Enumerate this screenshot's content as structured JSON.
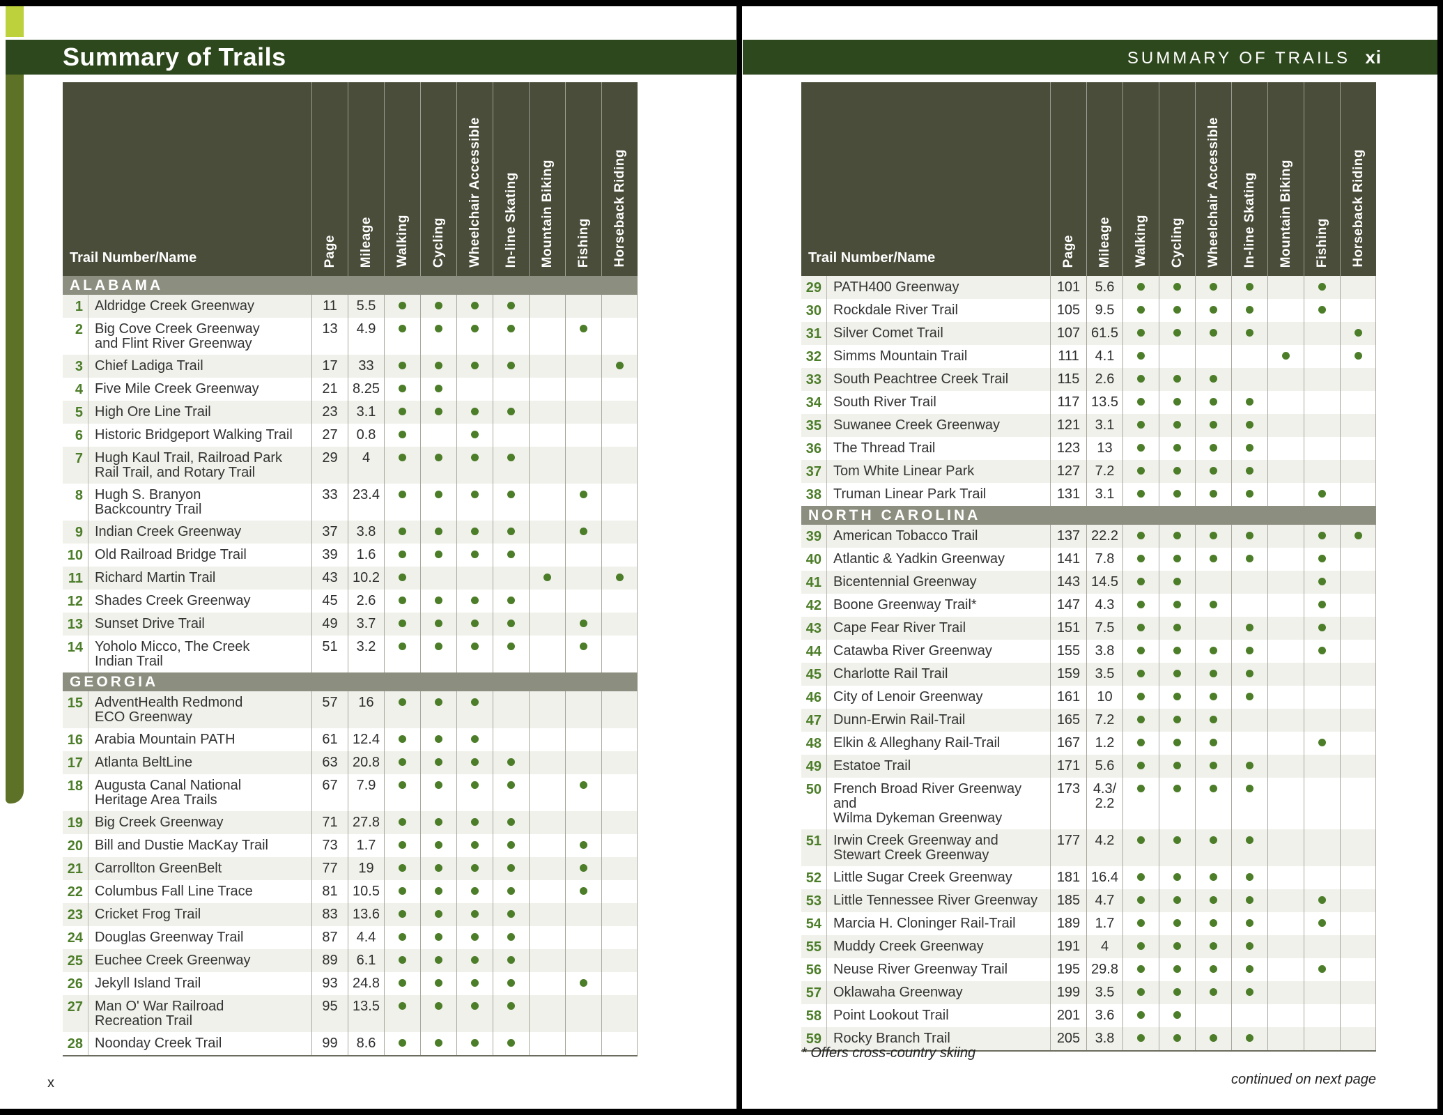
{
  "table": {
    "name_header": "Trail Number/Name",
    "columns": [
      "Page",
      "Mileage",
      "Walking",
      "Cycling",
      "Wheelchair Accessible",
      "In-line Skating",
      "Mountain Biking",
      "Fishing",
      "Horseback Riding"
    ]
  },
  "page_left": {
    "title": "Summary of Trails",
    "page_number": "x",
    "sections": [
      {
        "name": "ALABAMA",
        "rows": [
          {
            "num": "1",
            "name": "Aldridge Creek Greenway",
            "page": "11",
            "miles": "5.5",
            "dots": [
              1,
              1,
              1,
              1,
              0,
              0,
              0
            ]
          },
          {
            "num": "2",
            "name": "Big Cove Creek Greenway\nand Flint River Greenway",
            "page": "13",
            "miles": "4.9",
            "dots": [
              1,
              1,
              1,
              1,
              0,
              1,
              0
            ]
          },
          {
            "num": "3",
            "name": "Chief Ladiga Trail",
            "page": "17",
            "miles": "33",
            "dots": [
              1,
              1,
              1,
              1,
              0,
              0,
              1
            ]
          },
          {
            "num": "4",
            "name": "Five Mile Creek Greenway",
            "page": "21",
            "miles": "8.25",
            "dots": [
              1,
              1,
              0,
              0,
              0,
              0,
              0
            ]
          },
          {
            "num": "5",
            "name": "High Ore Line Trail",
            "page": "23",
            "miles": "3.1",
            "dots": [
              1,
              1,
              1,
              1,
              0,
              0,
              0
            ]
          },
          {
            "num": "6",
            "name": "Historic Bridgeport Walking Trail",
            "page": "27",
            "miles": "0.8",
            "dots": [
              1,
              0,
              1,
              0,
              0,
              0,
              0
            ]
          },
          {
            "num": "7",
            "name": "Hugh Kaul Trail, Railroad Park\nRail Trail, and Rotary Trail",
            "page": "29",
            "miles": "4",
            "dots": [
              1,
              1,
              1,
              1,
              0,
              0,
              0
            ]
          },
          {
            "num": "8",
            "name": "Hugh S. Branyon\nBackcountry Trail",
            "page": "33",
            "miles": "23.4",
            "dots": [
              1,
              1,
              1,
              1,
              0,
              1,
              0
            ]
          },
          {
            "num": "9",
            "name": "Indian Creek Greenway",
            "page": "37",
            "miles": "3.8",
            "dots": [
              1,
              1,
              1,
              1,
              0,
              1,
              0
            ]
          },
          {
            "num": "10",
            "name": "Old Railroad Bridge Trail",
            "page": "39",
            "miles": "1.6",
            "dots": [
              1,
              1,
              1,
              1,
              0,
              0,
              0
            ]
          },
          {
            "num": "11",
            "name": "Richard Martin Trail",
            "page": "43",
            "miles": "10.2",
            "dots": [
              1,
              0,
              0,
              0,
              1,
              0,
              1
            ]
          },
          {
            "num": "12",
            "name": "Shades Creek Greenway",
            "page": "45",
            "miles": "2.6",
            "dots": [
              1,
              1,
              1,
              1,
              0,
              0,
              0
            ]
          },
          {
            "num": "13",
            "name": "Sunset Drive Trail",
            "page": "49",
            "miles": "3.7",
            "dots": [
              1,
              1,
              1,
              1,
              0,
              1,
              0
            ]
          },
          {
            "num": "14",
            "name": "Yoholo Micco, The Creek\nIndian Trail",
            "page": "51",
            "miles": "3.2",
            "dots": [
              1,
              1,
              1,
              1,
              0,
              1,
              0
            ]
          }
        ]
      },
      {
        "name": "GEORGIA",
        "rows": [
          {
            "num": "15",
            "name": "AdventHealth Redmond\nECO Greenway",
            "page": "57",
            "miles": "16",
            "dots": [
              1,
              1,
              1,
              0,
              0,
              0,
              0
            ]
          },
          {
            "num": "16",
            "name": "Arabia Mountain PATH",
            "page": "61",
            "miles": "12.4",
            "dots": [
              1,
              1,
              1,
              0,
              0,
              0,
              0
            ]
          },
          {
            "num": "17",
            "name": "Atlanta BeltLine",
            "page": "63",
            "miles": "20.8",
            "dots": [
              1,
              1,
              1,
              1,
              0,
              0,
              0
            ]
          },
          {
            "num": "18",
            "name": "Augusta Canal National\nHeritage Area Trails",
            "page": "67",
            "miles": "7.9",
            "dots": [
              1,
              1,
              1,
              1,
              0,
              1,
              0
            ]
          },
          {
            "num": "19",
            "name": "Big Creek Greenway",
            "page": "71",
            "miles": "27.8",
            "dots": [
              1,
              1,
              1,
              1,
              0,
              0,
              0
            ]
          },
          {
            "num": "20",
            "name": "Bill and Dustie MacKay Trail",
            "page": "73",
            "miles": "1.7",
            "dots": [
              1,
              1,
              1,
              1,
              0,
              1,
              0
            ]
          },
          {
            "num": "21",
            "name": "Carrollton GreenBelt",
            "page": "77",
            "miles": "19",
            "dots": [
              1,
              1,
              1,
              1,
              0,
              1,
              0
            ]
          },
          {
            "num": "22",
            "name": "Columbus Fall Line Trace",
            "page": "81",
            "miles": "10.5",
            "dots": [
              1,
              1,
              1,
              1,
              0,
              1,
              0
            ]
          },
          {
            "num": "23",
            "name": "Cricket Frog Trail",
            "page": "83",
            "miles": "13.6",
            "dots": [
              1,
              1,
              1,
              1,
              0,
              0,
              0
            ]
          },
          {
            "num": "24",
            "name": "Douglas Greenway Trail",
            "page": "87",
            "miles": "4.4",
            "dots": [
              1,
              1,
              1,
              1,
              0,
              0,
              0
            ]
          },
          {
            "num": "25",
            "name": "Euchee Creek Greenway",
            "page": "89",
            "miles": "6.1",
            "dots": [
              1,
              1,
              1,
              1,
              0,
              0,
              0
            ]
          },
          {
            "num": "26",
            "name": "Jekyll Island Trail",
            "page": "93",
            "miles": "24.8",
            "dots": [
              1,
              1,
              1,
              1,
              0,
              1,
              0
            ]
          },
          {
            "num": "27",
            "name": "Man O' War Railroad\nRecreation Trail",
            "page": "95",
            "miles": "13.5",
            "dots": [
              1,
              1,
              1,
              1,
              0,
              0,
              0
            ]
          },
          {
            "num": "28",
            "name": "Noonday Creek Trail",
            "page": "99",
            "miles": "8.6",
            "dots": [
              1,
              1,
              1,
              1,
              0,
              0,
              0
            ]
          }
        ]
      }
    ]
  },
  "page_right": {
    "running_header": "SUMMARY OF TRAILS",
    "page_number": "xi",
    "sections": [
      {
        "name": null,
        "rows": [
          {
            "num": "29",
            "name": "PATH400 Greenway",
            "page": "101",
            "miles": "5.6",
            "dots": [
              1,
              1,
              1,
              1,
              0,
              1,
              0
            ]
          },
          {
            "num": "30",
            "name": "Rockdale River Trail",
            "page": "105",
            "miles": "9.5",
            "dots": [
              1,
              1,
              1,
              1,
              0,
              1,
              0
            ]
          },
          {
            "num": "31",
            "name": "Silver Comet Trail",
            "page": "107",
            "miles": "61.5",
            "dots": [
              1,
              1,
              1,
              1,
              0,
              0,
              1
            ]
          },
          {
            "num": "32",
            "name": "Simms Mountain Trail",
            "page": "111",
            "miles": "4.1",
            "dots": [
              1,
              0,
              0,
              0,
              1,
              0,
              1
            ]
          },
          {
            "num": "33",
            "name": "South Peachtree Creek Trail",
            "page": "115",
            "miles": "2.6",
            "dots": [
              1,
              1,
              1,
              0,
              0,
              0,
              0
            ]
          },
          {
            "num": "34",
            "name": "South River Trail",
            "page": "117",
            "miles": "13.5",
            "dots": [
              1,
              1,
              1,
              1,
              0,
              0,
              0
            ]
          },
          {
            "num": "35",
            "name": "Suwanee Creek Greenway",
            "page": "121",
            "miles": "3.1",
            "dots": [
              1,
              1,
              1,
              1,
              0,
              0,
              0
            ]
          },
          {
            "num": "36",
            "name": "The Thread Trail",
            "page": "123",
            "miles": "13",
            "dots": [
              1,
              1,
              1,
              1,
              0,
              0,
              0
            ]
          },
          {
            "num": "37",
            "name": "Tom White Linear Park",
            "page": "127",
            "miles": "7.2",
            "dots": [
              1,
              1,
              1,
              1,
              0,
              0,
              0
            ]
          },
          {
            "num": "38",
            "name": "Truman Linear Park Trail",
            "page": "131",
            "miles": "3.1",
            "dots": [
              1,
              1,
              1,
              1,
              0,
              1,
              0
            ]
          }
        ]
      },
      {
        "name": "NORTH CAROLINA",
        "rows": [
          {
            "num": "39",
            "name": "American Tobacco Trail",
            "page": "137",
            "miles": "22.2",
            "dots": [
              1,
              1,
              1,
              1,
              0,
              1,
              1
            ]
          },
          {
            "num": "40",
            "name": "Atlantic & Yadkin Greenway",
            "page": "141",
            "miles": "7.8",
            "dots": [
              1,
              1,
              1,
              1,
              0,
              1,
              0
            ]
          },
          {
            "num": "41",
            "name": "Bicentennial Greenway",
            "page": "143",
            "miles": "14.5",
            "dots": [
              1,
              1,
              0,
              0,
              0,
              1,
              0
            ]
          },
          {
            "num": "42",
            "name": "Boone Greenway Trail*",
            "page": "147",
            "miles": "4.3",
            "dots": [
              1,
              1,
              1,
              0,
              0,
              1,
              0
            ]
          },
          {
            "num": "43",
            "name": "Cape Fear River Trail",
            "page": "151",
            "miles": "7.5",
            "dots": [
              1,
              1,
              0,
              1,
              0,
              1,
              0
            ]
          },
          {
            "num": "44",
            "name": "Catawba River Greenway",
            "page": "155",
            "miles": "3.8",
            "dots": [
              1,
              1,
              1,
              1,
              0,
              1,
              0
            ]
          },
          {
            "num": "45",
            "name": "Charlotte Rail Trail",
            "page": "159",
            "miles": "3.5",
            "dots": [
              1,
              1,
              1,
              1,
              0,
              0,
              0
            ]
          },
          {
            "num": "46",
            "name": "City of Lenoir Greenway",
            "page": "161",
            "miles": "10",
            "dots": [
              1,
              1,
              1,
              1,
              0,
              0,
              0
            ]
          },
          {
            "num": "47",
            "name": "Dunn-Erwin Rail-Trail",
            "page": "165",
            "miles": "7.2",
            "dots": [
              1,
              1,
              1,
              0,
              0,
              0,
              0
            ]
          },
          {
            "num": "48",
            "name": "Elkin & Alleghany Rail-Trail",
            "page": "167",
            "miles": "1.2",
            "dots": [
              1,
              1,
              1,
              0,
              0,
              1,
              0
            ]
          },
          {
            "num": "49",
            "name": "Estatoe Trail",
            "page": "171",
            "miles": "5.6",
            "dots": [
              1,
              1,
              1,
              1,
              0,
              0,
              0
            ]
          },
          {
            "num": "50",
            "name": "French Broad River Greenway and\nWilma Dykeman Greenway",
            "page": "173",
            "miles": "4.3/\n2.2",
            "dots": [
              1,
              1,
              1,
              1,
              0,
              0,
              0
            ]
          },
          {
            "num": "51",
            "name": "Irwin Creek Greenway and\nStewart Creek Greenway",
            "page": "177",
            "miles": "4.2",
            "dots": [
              1,
              1,
              1,
              1,
              0,
              0,
              0
            ]
          },
          {
            "num": "52",
            "name": "Little Sugar Creek Greenway",
            "page": "181",
            "miles": "16.4",
            "dots": [
              1,
              1,
              1,
              1,
              0,
              0,
              0
            ]
          },
          {
            "num": "53",
            "name": "Little Tennessee River Greenway",
            "page": "185",
            "miles": "4.7",
            "dots": [
              1,
              1,
              1,
              1,
              0,
              1,
              0
            ]
          },
          {
            "num": "54",
            "name": "Marcia H. Cloninger Rail-Trail",
            "page": "189",
            "miles": "1.7",
            "dots": [
              1,
              1,
              1,
              1,
              0,
              1,
              0
            ]
          },
          {
            "num": "55",
            "name": "Muddy Creek Greenway",
            "page": "191",
            "miles": "4",
            "dots": [
              1,
              1,
              1,
              1,
              0,
              0,
              0
            ]
          },
          {
            "num": "56",
            "name": "Neuse River Greenway Trail",
            "page": "195",
            "miles": "29.8",
            "dots": [
              1,
              1,
              1,
              1,
              0,
              1,
              0
            ]
          },
          {
            "num": "57",
            "name": "Oklawaha Greenway",
            "page": "199",
            "miles": "3.5",
            "dots": [
              1,
              1,
              1,
              1,
              0,
              0,
              0
            ]
          },
          {
            "num": "58",
            "name": "Point Lookout Trail",
            "page": "201",
            "miles": "3.6",
            "dots": [
              1,
              1,
              0,
              0,
              0,
              0,
              0
            ]
          },
          {
            "num": "59",
            "name": "Rocky Branch Trail",
            "page": "205",
            "miles": "3.8",
            "dots": [
              1,
              1,
              1,
              1,
              0,
              0,
              0
            ]
          }
        ]
      }
    ],
    "footnote": "* Offers cross-country skiing",
    "continued": "continued on next page"
  },
  "colors": {
    "title_bar": "#2d481c",
    "table_header": "#494d39",
    "section_bar": "#8c8e7f",
    "dot_green": "#4c7d28",
    "accent_square": "#bdd13c",
    "side_strip": "#5d7226",
    "alt_row": "#f1f1ec"
  }
}
